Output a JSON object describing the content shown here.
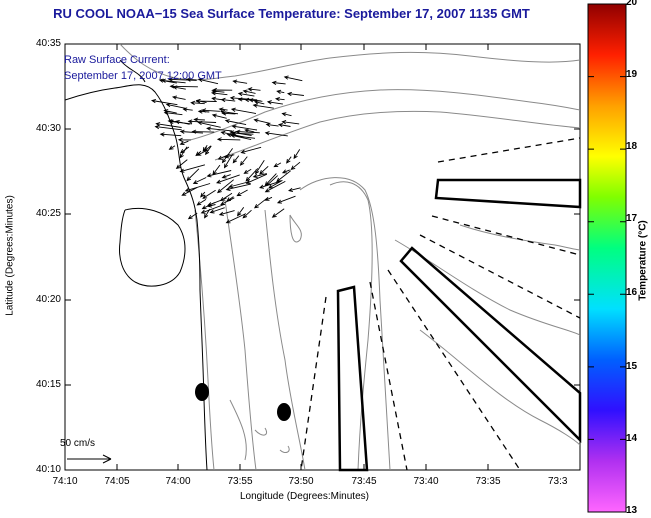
{
  "title": "RU COOL  NOAA−15  Sea Surface Temperature:  September 17, 2007 1135 GMT",
  "annotation": {
    "line1": "Raw Surface Current:",
    "line2": "September 17, 2007 12:00 GMT"
  },
  "scale_label": "50 cm/s",
  "map": {
    "x_axis_title": "Longitude (Degrees:Minutes)",
    "y_axis_title": "Latitude (Degrees:Minutes)",
    "x_ticks": [
      "74:10",
      "74:05",
      "74:00",
      "73:55",
      "73:50",
      "73:45",
      "73:40",
      "73:35",
      "73:3"
    ],
    "y_ticks": [
      "40:35",
      "40:30",
      "40:25",
      "40:20",
      "40:15",
      "40:10"
    ],
    "x_range_minutes_west": [
      -10,
      30
    ],
    "y_range": [
      "40:10",
      "40:35"
    ]
  },
  "colorbar": {
    "title": "Temperature (°C)",
    "ticks": [
      "20",
      "19",
      "18",
      "17",
      "16",
      "15",
      "14",
      "13"
    ],
    "range": [
      13,
      20
    ],
    "colors": [
      "#ff66ff",
      "#a020f0",
      "#0000ff",
      "#00ffff",
      "#00ff66",
      "#ffff00",
      "#ff8000",
      "#ff0000",
      "#800000"
    ]
  },
  "colors": {
    "title": "#1a1a9c",
    "contours": "#8a8a8a",
    "coast": "#000000"
  }
}
